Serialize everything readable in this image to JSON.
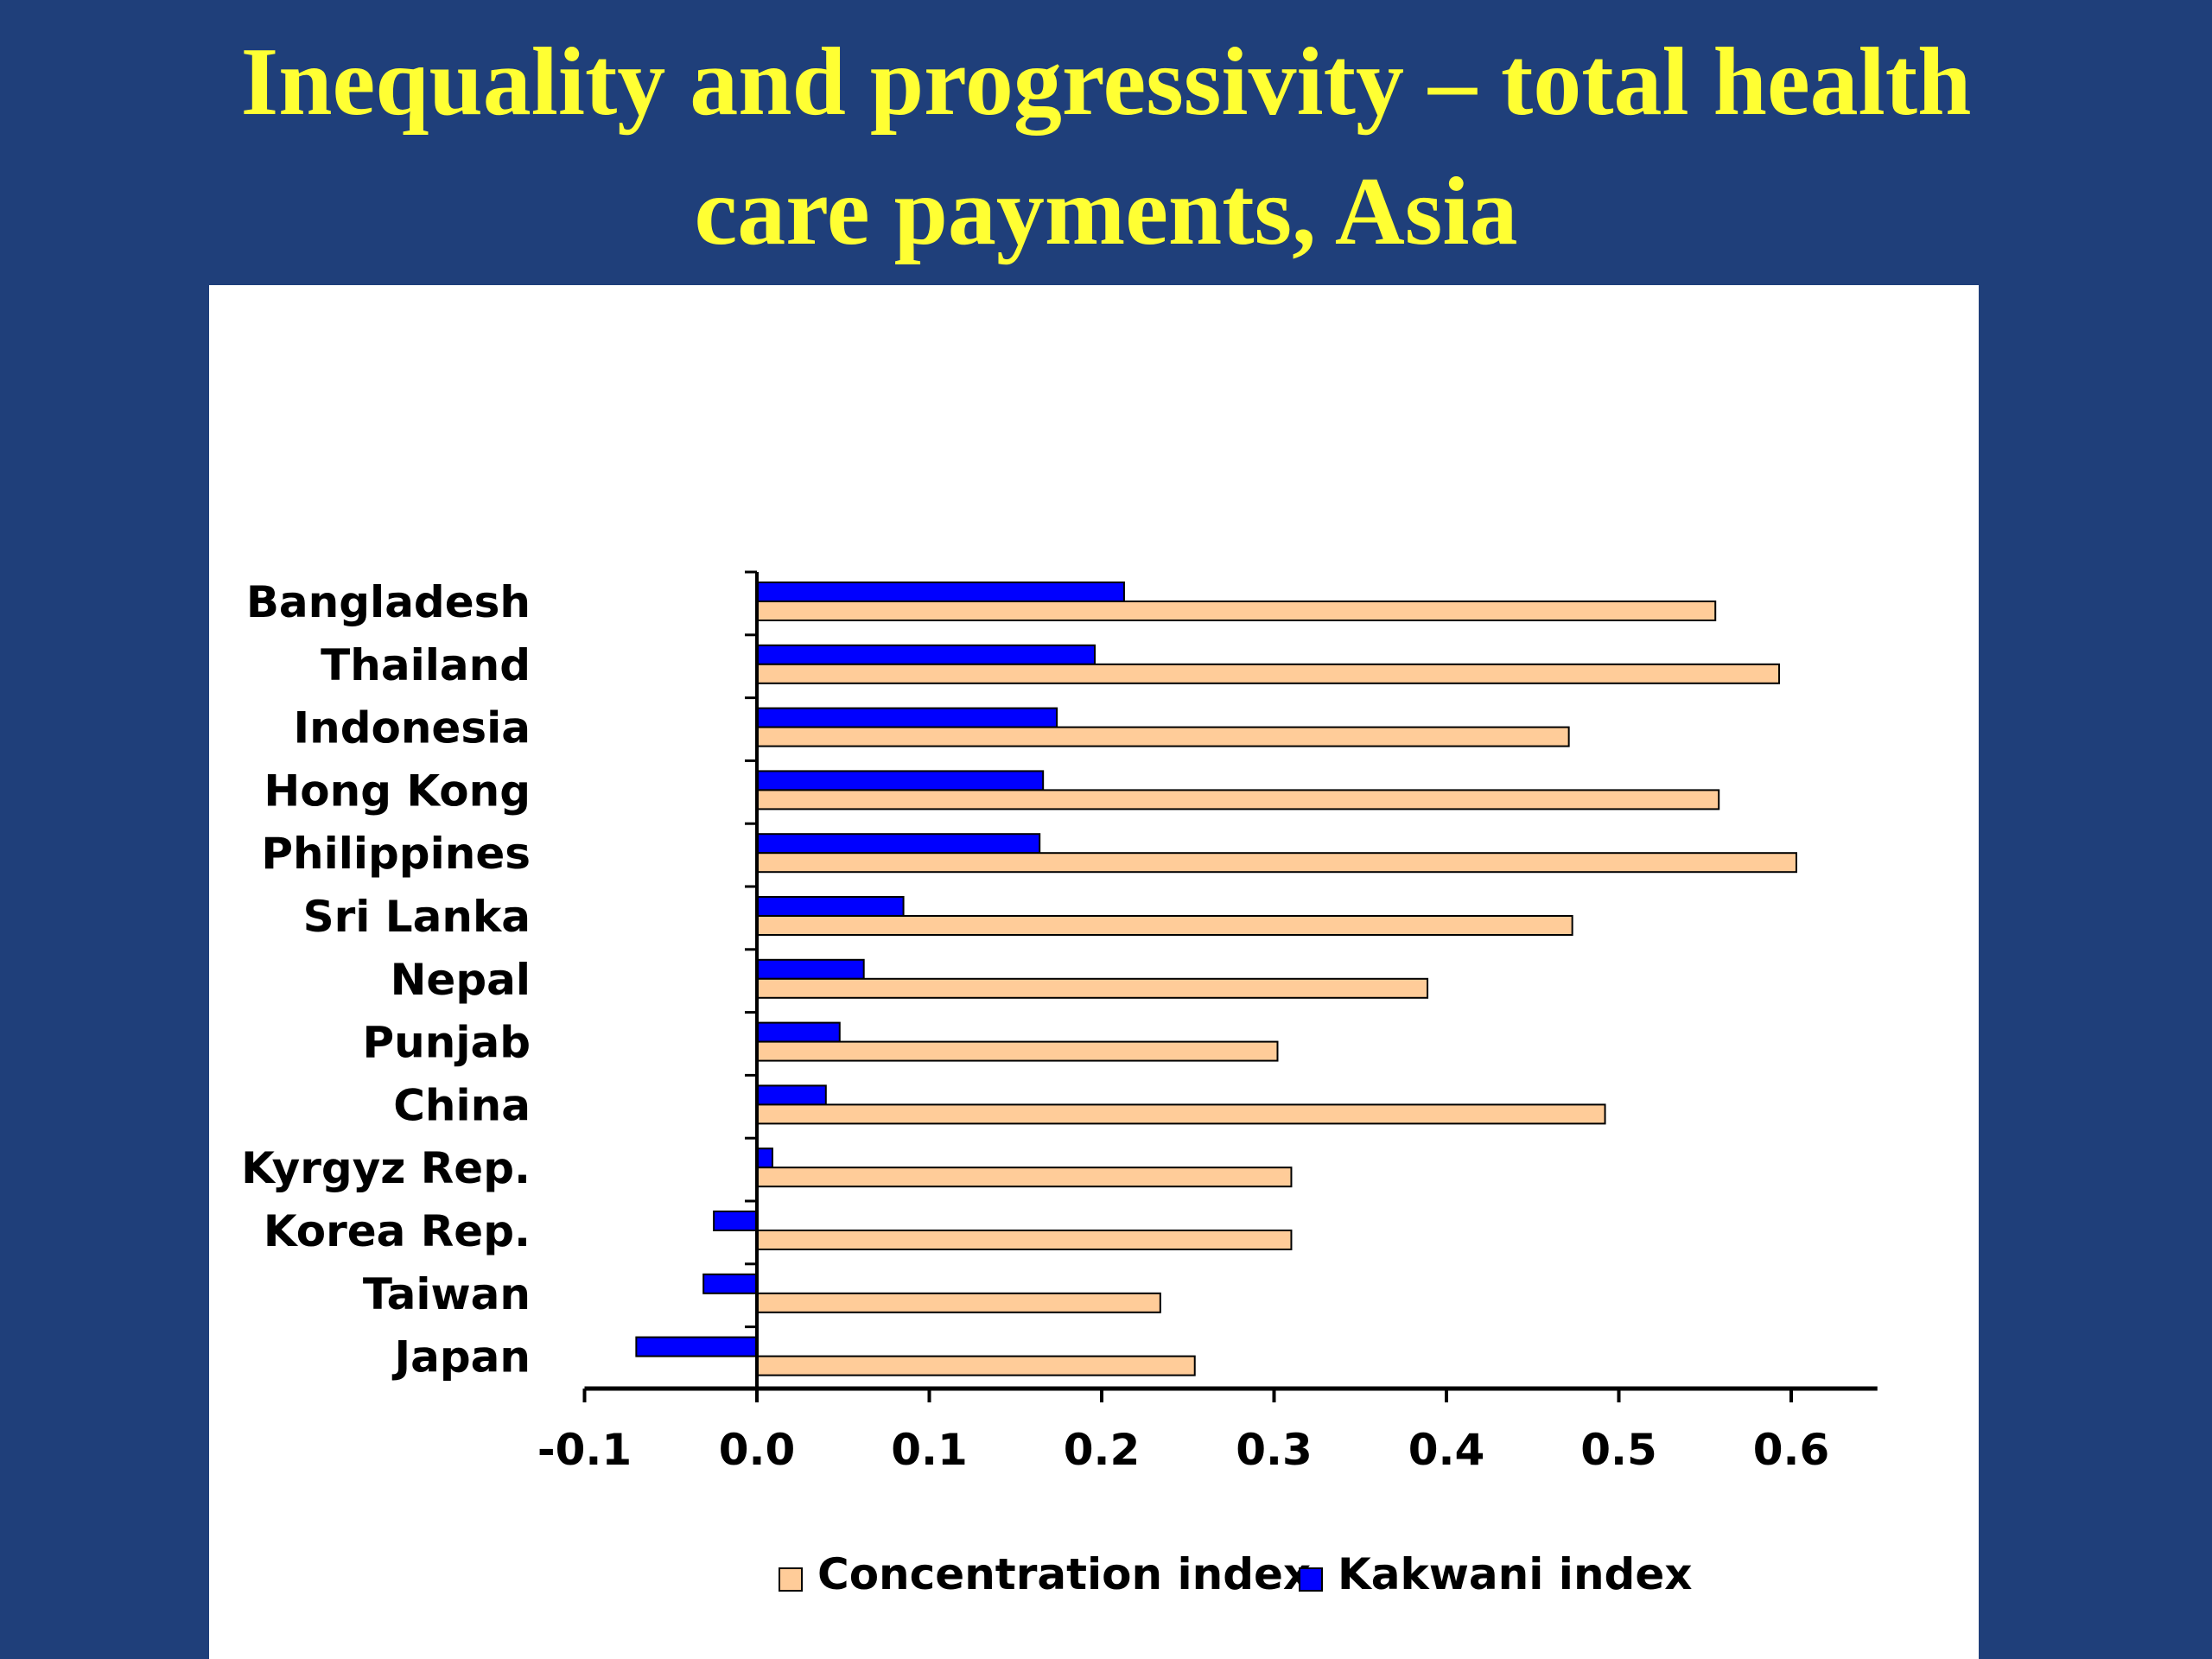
{
  "slide": {
    "title_line1": "Inequality and progressivity – total health",
    "title_line2": "care payments, Asia"
  },
  "colors": {
    "background": "#1f3f7a",
    "title": "#ffff33",
    "panel": "#ffffff",
    "concentration": "#ffcc99",
    "kakwani": "#0000ff"
  },
  "chart_data": {
    "type": "bar",
    "orientation": "horizontal",
    "title": "",
    "xlabel": "",
    "ylabel": "",
    "categories": [
      "Bangladesh",
      "Thailand",
      "Indonesia",
      "Hong Kong",
      "Philippines",
      "Sri Lanka",
      "Nepal",
      "Punjab",
      "China",
      "Kyrgyz Rep.",
      "Korea Rep.",
      "Taiwan",
      "Japan"
    ],
    "series": [
      {
        "name": "Kakwani index",
        "color": "#0000ff",
        "values": [
          0.213,
          0.196,
          0.174,
          0.166,
          0.164,
          0.085,
          0.062,
          0.048,
          0.04,
          0.009,
          -0.025,
          -0.031,
          -0.07
        ]
      },
      {
        "name": "Concentration index",
        "color": "#ffcc99",
        "values": [
          0.556,
          0.593,
          0.471,
          0.558,
          0.603,
          0.473,
          0.389,
          0.302,
          0.492,
          0.31,
          0.31,
          0.234,
          0.254
        ]
      }
    ],
    "xlim": [
      -0.1,
      0.65
    ],
    "xticks": [
      -0.1,
      0.0,
      0.1,
      0.2,
      0.3,
      0.4,
      0.5,
      0.6
    ],
    "xtick_labels": [
      "-0.1",
      "0.0",
      "0.1",
      "0.2",
      "0.3",
      "0.4",
      "0.5",
      "0.6"
    ],
    "grid": false,
    "legend": {
      "position": "bottom",
      "entries": [
        "Concentration index",
        "Kakwani index"
      ]
    }
  }
}
